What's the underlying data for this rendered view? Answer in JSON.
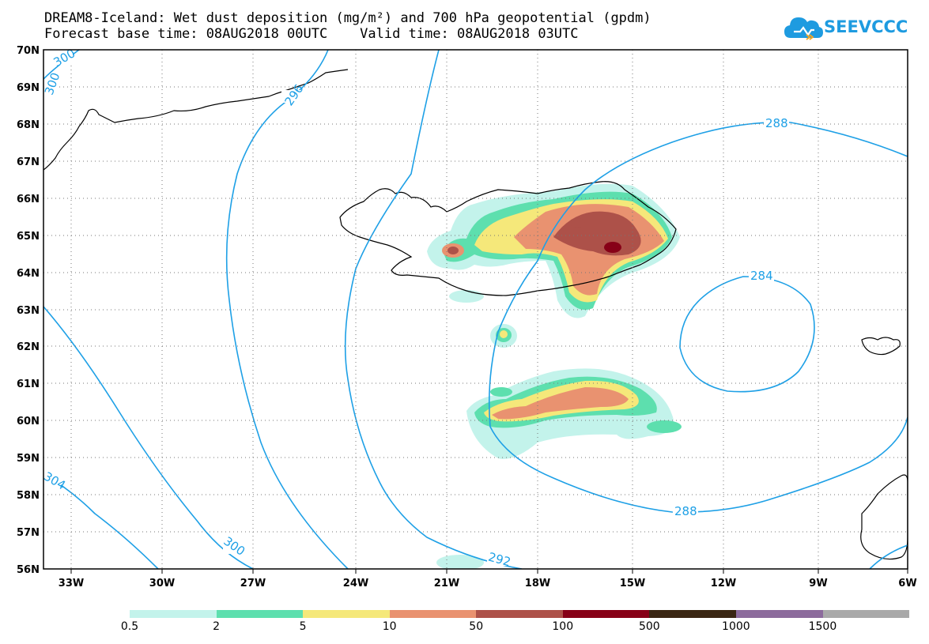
{
  "title": {
    "line1": "DREAM8-Iceland: Wet dust deposition (mg/m²) and 700 hPa geopotential (gpdm)",
    "line2": "Forecast base time: 08AUG2018 00UTC    Valid time: 08AUG2018 03UTC"
  },
  "logo": {
    "text": "SEEVCCC",
    "color": "#1e9be0"
  },
  "map": {
    "lat_labels": [
      "70N",
      "69N",
      "68N",
      "67N",
      "66N",
      "65N",
      "64N",
      "63N",
      "62N",
      "61N",
      "60N",
      "59N",
      "58N",
      "57N",
      "56N"
    ],
    "lon_labels": [
      "33W",
      "30W",
      "27W",
      "24W",
      "21W",
      "18W",
      "15W",
      "12W",
      "9W",
      "6W"
    ],
    "contour_labels": [
      "300",
      "296",
      "288",
      "284",
      "288",
      "292",
      "300",
      "304",
      "300"
    ],
    "contour_color": "#1ea0e6"
  },
  "legend": {
    "colors": [
      "#c3f3eb",
      "#5ddfae",
      "#f5e87a",
      "#e99270",
      "#ad5149",
      "#870017",
      "#3a2613",
      "#8c6b9c",
      "#a9a9a9"
    ],
    "ticks": [
      "0.5",
      "2",
      "5",
      "10",
      "50",
      "100",
      "500",
      "1000",
      "1500"
    ]
  }
}
